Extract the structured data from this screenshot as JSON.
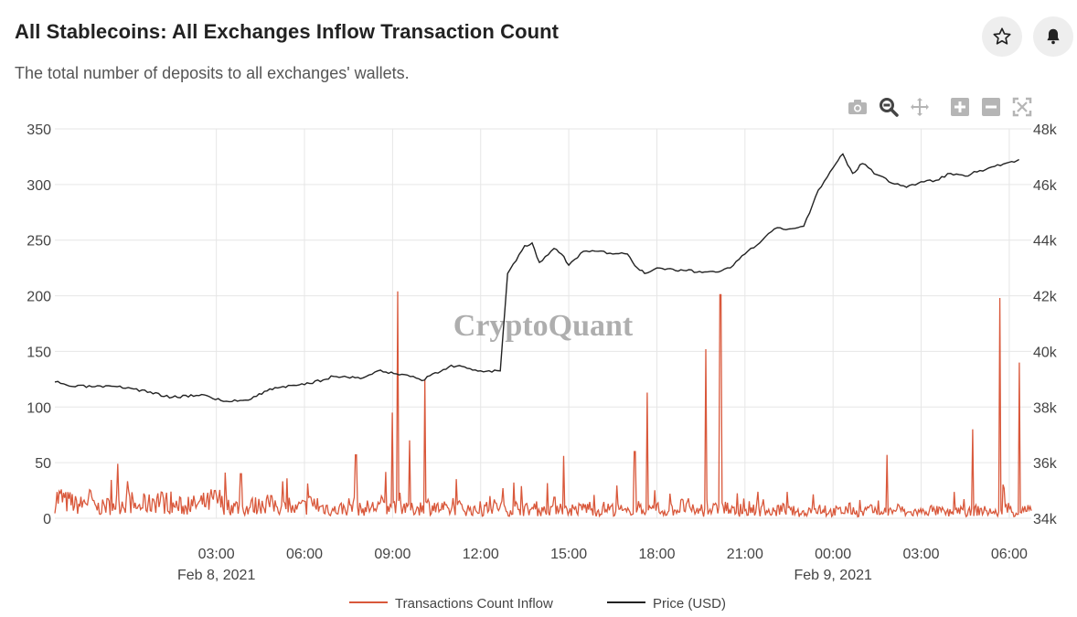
{
  "header": {
    "title": "All Stablecoins: All Exchanges Inflow Transaction Count",
    "subtitle": "The total number of deposits to all exchanges' wallets."
  },
  "actions": {
    "star_icon": "star-icon",
    "bell_icon": "bell-icon"
  },
  "modebar": [
    "camera-icon",
    "zoom-icon",
    "pan-icon",
    "zoom-in-icon",
    "zoom-out-icon",
    "autoscale-icon"
  ],
  "watermark": "CryptoQuant",
  "chart_data": {
    "type": "line",
    "x_range": [
      "2021-02-07 21:30",
      "2021-02-09 06:45"
    ],
    "x_ticks": [
      {
        "t": "2021-02-08 03:00",
        "label": "03:00",
        "sublabel": "Feb 8, 2021"
      },
      {
        "t": "2021-02-08 06:00",
        "label": "06:00"
      },
      {
        "t": "2021-02-08 09:00",
        "label": "09:00"
      },
      {
        "t": "2021-02-08 12:00",
        "label": "12:00"
      },
      {
        "t": "2021-02-08 15:00",
        "label": "15:00"
      },
      {
        "t": "2021-02-08 18:00",
        "label": "18:00"
      },
      {
        "t": "2021-02-08 21:00",
        "label": "21:00"
      },
      {
        "t": "2021-02-09 00:00",
        "label": "00:00",
        "sublabel": "Feb 9, 2021"
      },
      {
        "t": "2021-02-09 03:00",
        "label": "03:00"
      },
      {
        "t": "2021-02-09 06:00",
        "label": "06:00"
      }
    ],
    "y_left": {
      "range": [
        0,
        350
      ],
      "ticks": [
        0,
        50,
        100,
        150,
        200,
        250,
        300,
        350
      ]
    },
    "y_right": {
      "range": [
        34000,
        48000
      ],
      "ticks": [
        {
          "v": 34000,
          "label": "34k"
        },
        {
          "v": 36000,
          "label": "36k"
        },
        {
          "v": 38000,
          "label": "38k"
        },
        {
          "v": 40000,
          "label": "40k"
        },
        {
          "v": 42000,
          "label": "42k"
        },
        {
          "v": 44000,
          "label": "44k"
        },
        {
          "v": 46000,
          "label": "46k"
        },
        {
          "v": 48000,
          "label": "48k"
        }
      ]
    },
    "grid": true,
    "legend_position": "bottom-center",
    "series": [
      {
        "name": "Transactions Count Inflow",
        "axis": "left",
        "color": "#d9583b",
        "baseline": [
          22,
          18,
          15,
          20,
          12,
          14,
          17,
          19,
          13,
          16,
          21,
          18,
          14,
          12,
          15,
          17,
          20,
          16,
          13,
          11,
          14,
          18,
          15,
          12,
          10,
          13,
          16,
          12,
          9,
          11,
          14,
          10,
          12,
          15,
          11,
          13,
          10,
          12,
          14,
          11,
          9,
          12,
          10,
          8,
          11,
          13,
          9,
          12,
          10,
          8,
          11,
          14,
          9,
          10,
          12,
          8,
          11,
          10,
          7,
          12,
          9,
          11,
          8,
          10,
          13,
          9,
          7,
          10,
          12,
          8,
          6,
          11,
          9,
          7,
          10,
          8,
          6,
          9,
          11,
          7,
          8,
          10,
          6,
          9,
          7,
          8,
          10,
          6,
          7,
          9,
          8,
          6,
          10,
          7,
          9,
          8,
          6,
          11,
          7,
          9
        ],
        "spikes": [
          {
            "t": "2021-02-08 03:50",
            "v": 40
          },
          {
            "t": "2021-02-08 07:45",
            "v": 57
          },
          {
            "t": "2021-02-08 09:00",
            "v": 95
          },
          {
            "t": "2021-02-08 09:10",
            "v": 204
          },
          {
            "t": "2021-02-08 09:35",
            "v": 70
          },
          {
            "t": "2021-02-08 10:05",
            "v": 125
          },
          {
            "t": "2021-02-08 14:50",
            "v": 56
          },
          {
            "t": "2021-02-08 17:15",
            "v": 60
          },
          {
            "t": "2021-02-08 17:40",
            "v": 113
          },
          {
            "t": "2021-02-08 19:40",
            "v": 152
          },
          {
            "t": "2021-02-08 20:10",
            "v": 201
          },
          {
            "t": "2021-02-09 01:50",
            "v": 57
          },
          {
            "t": "2021-02-09 04:45",
            "v": 80
          },
          {
            "t": "2021-02-09 05:40",
            "v": 198
          },
          {
            "t": "2021-02-09 06:20",
            "v": 140
          }
        ]
      },
      {
        "name": "Price (USD)",
        "axis": "right",
        "color": "#222222",
        "points": [
          [
            "2021-02-07 21:30",
            38900
          ],
          [
            "2021-02-07 22:00",
            38750
          ],
          [
            "2021-02-08 00:00",
            38700
          ],
          [
            "2021-02-08 01:30",
            38350
          ],
          [
            "2021-02-08 02:30",
            38450
          ],
          [
            "2021-02-08 03:15",
            38200
          ],
          [
            "2021-02-08 04:00",
            38250
          ],
          [
            "2021-02-08 05:00",
            38700
          ],
          [
            "2021-02-08 06:00",
            38800
          ],
          [
            "2021-02-08 07:00",
            39100
          ],
          [
            "2021-02-08 08:00",
            39050
          ],
          [
            "2021-02-08 08:30",
            39300
          ],
          [
            "2021-02-08 09:30",
            39150
          ],
          [
            "2021-02-08 10:00",
            38950
          ],
          [
            "2021-02-08 11:00",
            39500
          ],
          [
            "2021-02-08 12:00",
            39300
          ],
          [
            "2021-02-08 12:40",
            39300
          ],
          [
            "2021-02-08 12:55",
            42800
          ],
          [
            "2021-02-08 13:30",
            43800
          ],
          [
            "2021-02-08 13:45",
            43900
          ],
          [
            "2021-02-08 14:00",
            43200
          ],
          [
            "2021-02-08 14:30",
            43700
          ],
          [
            "2021-02-08 14:45",
            43500
          ],
          [
            "2021-02-08 15:00",
            43100
          ],
          [
            "2021-02-08 15:30",
            43600
          ],
          [
            "2021-02-08 16:00",
            43600
          ],
          [
            "2021-02-08 16:30",
            43500
          ],
          [
            "2021-02-08 17:00",
            43500
          ],
          [
            "2021-02-08 17:20",
            43000
          ],
          [
            "2021-02-08 17:35",
            42800
          ],
          [
            "2021-02-08 18:00",
            43000
          ],
          [
            "2021-02-08 19:00",
            42900
          ],
          [
            "2021-02-08 20:00",
            42850
          ],
          [
            "2021-02-08 20:30",
            43000
          ],
          [
            "2021-02-08 21:00",
            43500
          ],
          [
            "2021-02-08 21:30",
            43900
          ],
          [
            "2021-02-08 22:00",
            44400
          ],
          [
            "2021-02-08 22:30",
            44400
          ],
          [
            "2021-02-08 23:00",
            44500
          ],
          [
            "2021-02-08 23:30",
            45800
          ],
          [
            "2021-02-09 00:00",
            46600
          ],
          [
            "2021-02-09 00:20",
            47100
          ],
          [
            "2021-02-09 00:40",
            46400
          ],
          [
            "2021-02-09 01:00",
            46750
          ],
          [
            "2021-02-09 01:30",
            46350
          ],
          [
            "2021-02-09 02:00",
            46050
          ],
          [
            "2021-02-09 02:30",
            45900
          ],
          [
            "2021-02-09 03:00",
            46100
          ],
          [
            "2021-02-09 03:30",
            46150
          ],
          [
            "2021-02-09 04:00",
            46400
          ],
          [
            "2021-02-09 04:30",
            46300
          ],
          [
            "2021-02-09 05:00",
            46500
          ],
          [
            "2021-02-09 05:30",
            46650
          ],
          [
            "2021-02-09 06:00",
            46800
          ],
          [
            "2021-02-09 06:20",
            46900
          ]
        ]
      }
    ]
  }
}
